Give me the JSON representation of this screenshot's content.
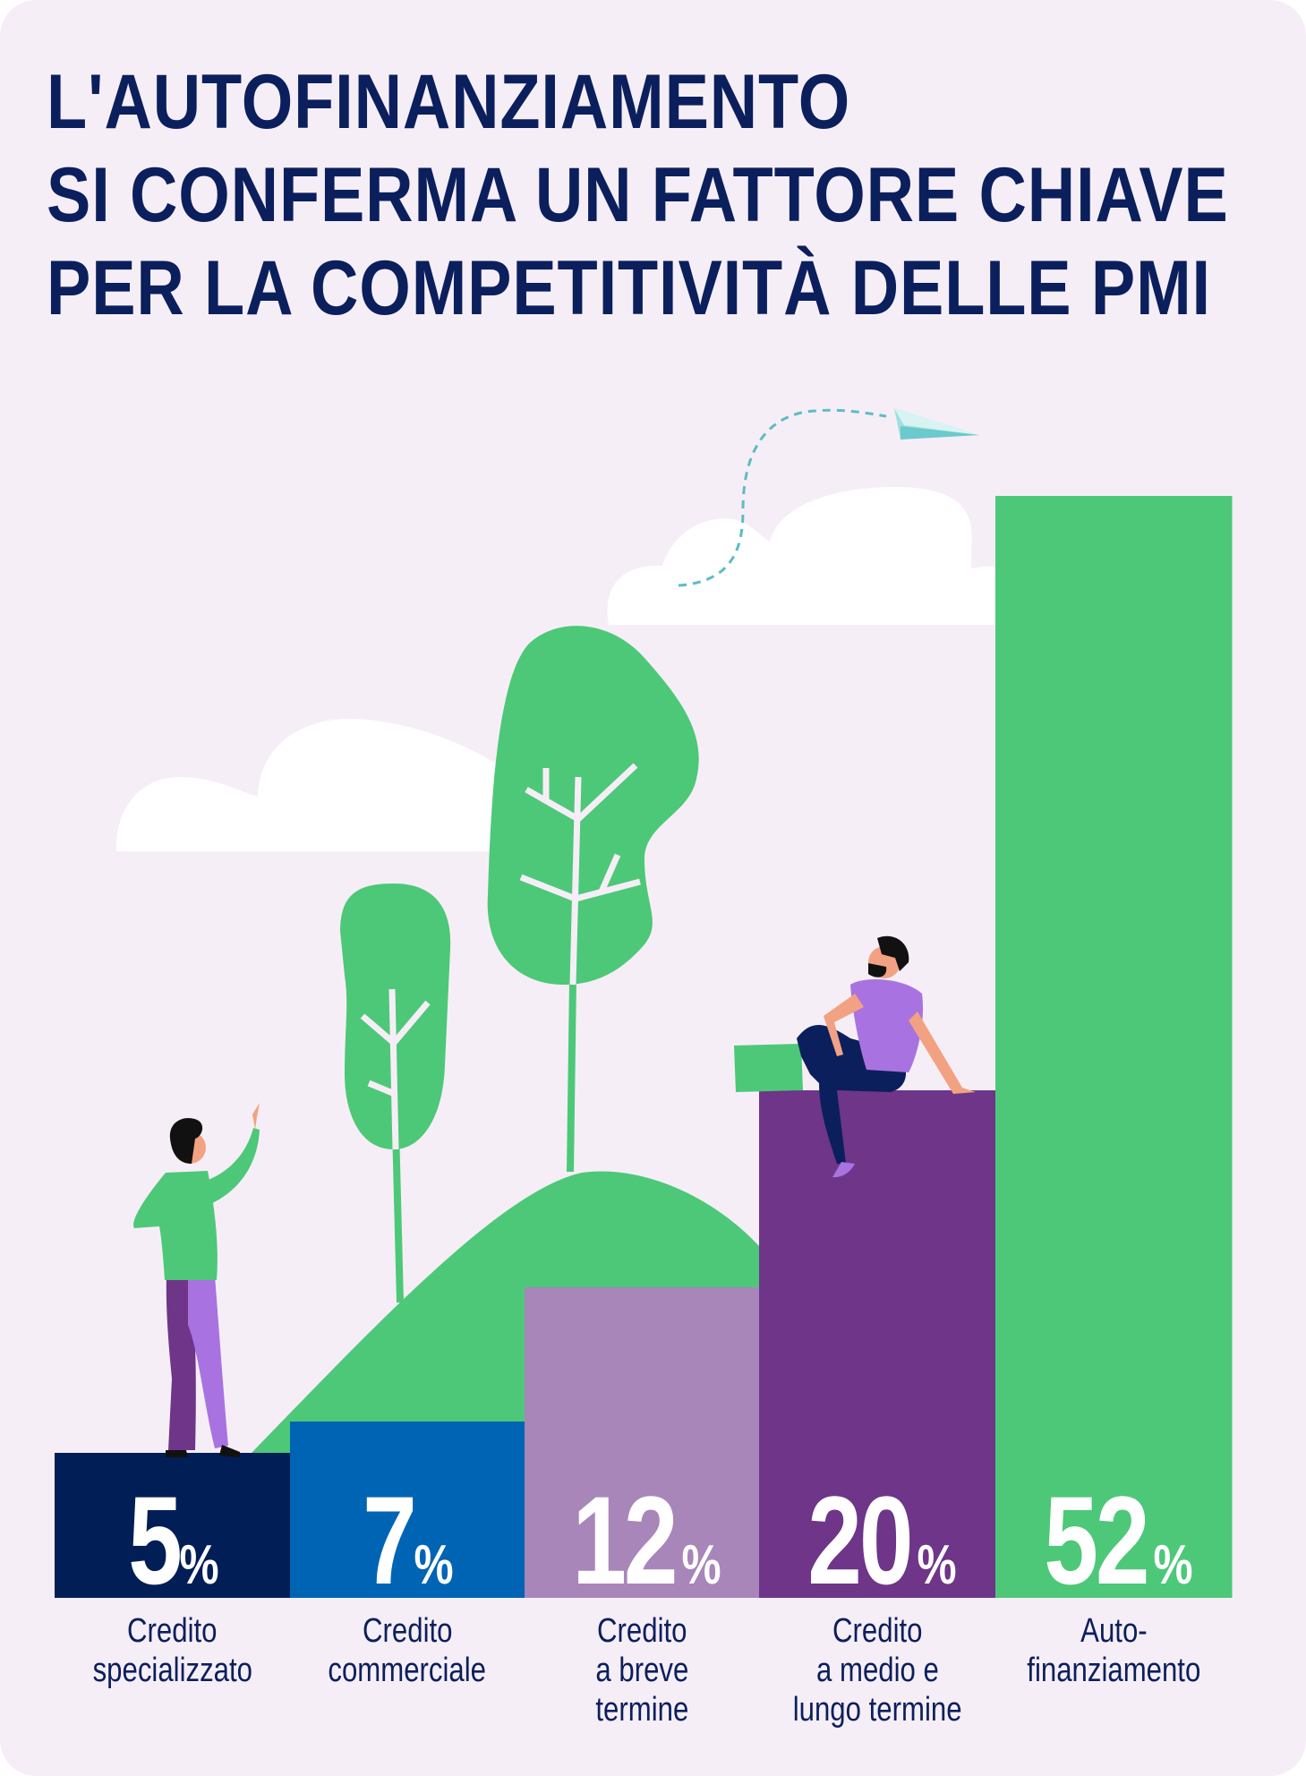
{
  "title_lines": [
    "L'AUTOFINANZIAMENTO",
    "SI CONFERMA UN FATTORE CHIAVE",
    "PER LA COMPETITIVITÀ DELLE PMI"
  ],
  "colors": {
    "background": "#f6eef7",
    "title": "#0b1f5c",
    "illustration_green": "#4dc878",
    "cloud": "#ffffff"
  },
  "chart_data": {
    "type": "bar",
    "categories": [
      "Credito specializzato",
      "Credito commerciale",
      "Credito a breve termine",
      "Credito a medio e lungo termine",
      "Auto-finanziamento"
    ],
    "label_lines": [
      [
        "Credito",
        "specializzato"
      ],
      [
        "Credito",
        "commerciale"
      ],
      [
        "Credito",
        "a breve",
        "termine"
      ],
      [
        "Credito",
        "a medio e",
        "lungo termine"
      ],
      [
        "Auto-",
        "finanziamento"
      ]
    ],
    "values": [
      5,
      7,
      12,
      20,
      52
    ],
    "value_labels": [
      "5",
      "7",
      "12",
      "20",
      "52"
    ],
    "unit": "%",
    "colors": [
      "#021e57",
      "#0064b4",
      "#a886b9",
      "#6e3589",
      "#4dc878"
    ],
    "ylim": [
      0,
      52
    ],
    "grid": false,
    "legend": "none"
  },
  "illustration_icons": [
    "cloud-icon",
    "paper-plane-icon",
    "tree-icon",
    "hill-icon",
    "standing-person-icon",
    "sitting-person-icon",
    "laptop-icon"
  ]
}
